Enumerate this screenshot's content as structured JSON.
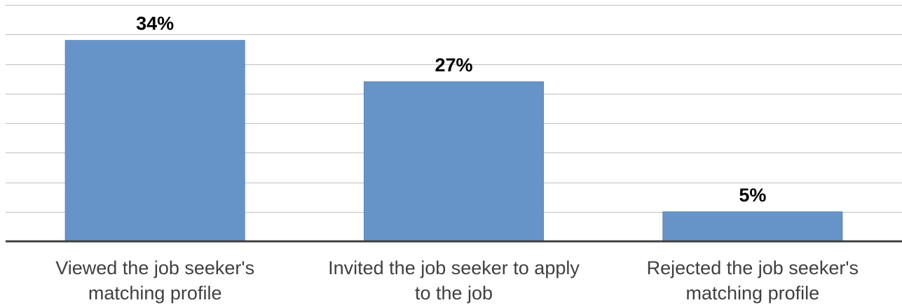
{
  "chart_data": {
    "type": "bar",
    "categories": [
      [
        "Viewed the job seeker's",
        "matching profile"
      ],
      [
        "Invited the job seeker to apply",
        "to the job"
      ],
      [
        "Rejected the job seeker's",
        "matching profile"
      ]
    ],
    "values": [
      34,
      27,
      5
    ],
    "value_labels": [
      "34%",
      "27%",
      "5%"
    ],
    "ylim": [
      0,
      40
    ],
    "grid": true,
    "legend": "none",
    "bar_color": "#6794c8"
  }
}
